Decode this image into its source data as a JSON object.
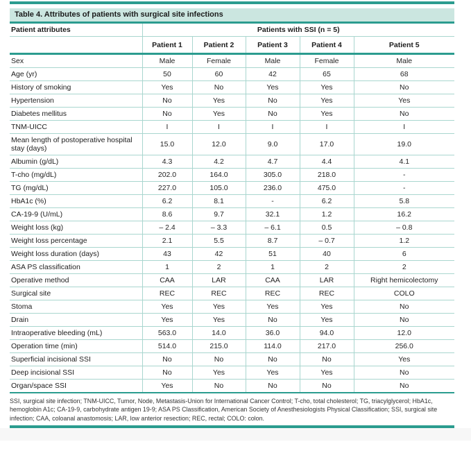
{
  "table": {
    "title": "Table 4. Attributes of patients with surgical site infections",
    "header": {
      "attributes_label": "Patient attributes",
      "group_label": "Patients with SSI (n = 5)",
      "patient_columns": [
        "Patient 1",
        "Patient 2",
        "Patient 3",
        "Patient 4",
        "Patient 5"
      ]
    },
    "rows": [
      {
        "label": "Sex",
        "values": [
          "Male",
          "Female",
          "Male",
          "Female",
          "Male"
        ]
      },
      {
        "label": "Age (yr)",
        "values": [
          "50",
          "60",
          "42",
          "65",
          "68"
        ]
      },
      {
        "label": "History of smoking",
        "values": [
          "Yes",
          "No",
          "Yes",
          "Yes",
          "No"
        ]
      },
      {
        "label": "Hypertension",
        "values": [
          "No",
          "Yes",
          "No",
          "Yes",
          "Yes"
        ]
      },
      {
        "label": "Diabetes mellitus",
        "values": [
          "No",
          "Yes",
          "No",
          "Yes",
          "No"
        ]
      },
      {
        "label": "TNM-UICC",
        "values": [
          "I",
          "I",
          "I",
          "I",
          "I"
        ]
      },
      {
        "label": "Mean length of postoperative hospital stay (days)",
        "values": [
          "15.0",
          "12.0",
          "9.0",
          "17.0",
          "19.0"
        ]
      },
      {
        "label": "Albumin (g/dL)",
        "values": [
          "4.3",
          "4.2",
          "4.7",
          "4.4",
          "4.1"
        ]
      },
      {
        "label": "T-cho (mg/dL)",
        "values": [
          "202.0",
          "164.0",
          "305.0",
          "218.0",
          "-"
        ]
      },
      {
        "label": "TG (mg/dL)",
        "values": [
          "227.0",
          "105.0",
          "236.0",
          "475.0",
          "-"
        ]
      },
      {
        "label": "HbA1c (%)",
        "values": [
          "6.2",
          "8.1",
          "-",
          "6.2",
          "5.8"
        ]
      },
      {
        "label": "CA-19-9 (U/mL)",
        "values": [
          "8.6",
          "9.7",
          "32.1",
          "1.2",
          "16.2"
        ]
      },
      {
        "label": "Weight loss (kg)",
        "values": [
          "– 2.4",
          "– 3.3",
          "– 6.1",
          "0.5",
          "– 0.8"
        ]
      },
      {
        "label": "Weight loss percentage",
        "values": [
          "2.1",
          "5.5",
          "8.7",
          "– 0.7",
          "1.2"
        ]
      },
      {
        "label": "Weight loss duration (days)",
        "values": [
          "43",
          "42",
          "51",
          "40",
          "6"
        ]
      },
      {
        "label": "ASA PS classification",
        "values": [
          "1",
          "2",
          "1",
          "2",
          "2"
        ]
      },
      {
        "label": "Operative method",
        "values": [
          "CAA",
          "LAR",
          "CAA",
          "LAR",
          "Right hemicolectomy"
        ]
      },
      {
        "label": "Surgical site",
        "values": [
          "REC",
          "REC",
          "REC",
          "REC",
          "COLO"
        ]
      },
      {
        "label": "Stoma",
        "values": [
          "Yes",
          "Yes",
          "Yes",
          "Yes",
          "No"
        ]
      },
      {
        "label": "Drain",
        "values": [
          "Yes",
          "Yes",
          "No",
          "Yes",
          "No"
        ]
      },
      {
        "label": "Intraoperative bleeding (mL)",
        "values": [
          "563.0",
          "14.0",
          "36.0",
          "94.0",
          "12.0"
        ]
      },
      {
        "label": "Operation time (min)",
        "values": [
          "514.0",
          "215.0",
          "114.0",
          "217.0",
          "256.0"
        ]
      },
      {
        "label": "Superficial incisional SSI",
        "values": [
          "No",
          "No",
          "No",
          "No",
          "Yes"
        ]
      },
      {
        "label": "Deep incisional SSI",
        "values": [
          "No",
          "Yes",
          "Yes",
          "Yes",
          "No"
        ]
      },
      {
        "label": "Organ/space SSI",
        "values": [
          "Yes",
          "No",
          "No",
          "No",
          "No"
        ]
      }
    ],
    "footnote": "SSI, surgical site infection; TNM-UICC, Tumor, Node, Metastasis-Union for International Cancer Control; T-cho, total cholesterol; TG, triacylglycerol; HbA1c, hemoglobin A1c; CA-19-9, carbohydrate antigen 19-9; ASA PS Classification, American Society of Anesthesiologists Physical Classification; SSI, surgical site infection; CAA, coloanal anastomosis; LAR, low anterior resection; REC, rectal; COLO: colon."
  },
  "colors": {
    "accent_teal": "#2b9c8f",
    "light_border": "#a9d6cf",
    "title_background": "#cbe6e0"
  }
}
